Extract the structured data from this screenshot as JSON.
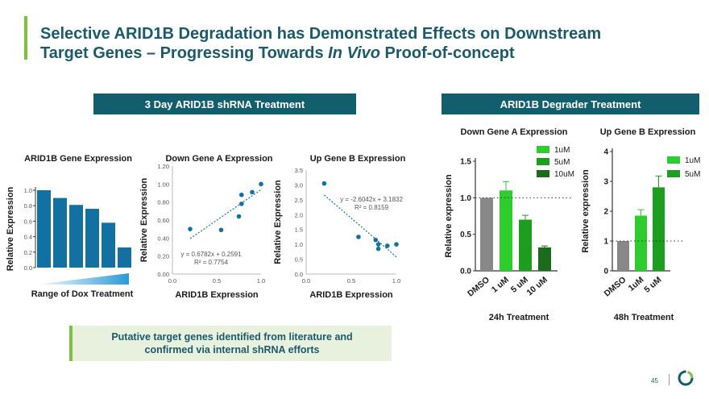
{
  "slide": {
    "title_line1": "Selective ARID1B Degradation has Demonstrated Effects on Downstream",
    "title_line2_pre": "Target Genes – Progressing Towards ",
    "title_line2_em": "In Vivo",
    "title_line2_post": " Proof-of-concept",
    "header_left": "3 Day ARID1B shRNA Treatment",
    "header_right": "ARID1B Degrader Treatment",
    "callout_line1": "Putative target genes identified from literature and",
    "callout_line2": "confirmed via internal shRNA efforts",
    "page_number": "45"
  },
  "colors": {
    "teal": "#135e6c",
    "bar_blue": "#1271a0",
    "accent_green": "#7cc242",
    "grey": "#888888",
    "green_1uM": "#2ecc2e",
    "green_5uM": "#1e9e1e",
    "green_10uM": "#1a6b1a"
  },
  "chart_data": [
    {
      "type": "bar",
      "title": "ARID1B Gene Expression",
      "ylabel": "Relative  Expression",
      "ylim": [
        0,
        1.0
      ],
      "yticks": [
        "0.0",
        "0.2",
        "0.4",
        "0.6",
        "0.8",
        "1.0"
      ],
      "values": [
        1.0,
        0.9,
        0.81,
        0.76,
        0.58,
        0.26
      ],
      "xlabel": "Range of Dox Treatment"
    },
    {
      "type": "scatter",
      "title": "Down Gene A Expression",
      "xlabel": "ARID1B Expression",
      "ylabel": "Relative  Expression",
      "xlim": [
        0,
        1.0
      ],
      "ylim": [
        0,
        1.2
      ],
      "xticks": [
        "0.0",
        "0.5",
        "1.0"
      ],
      "yticks": [
        "0.00",
        "0.20",
        "0.40",
        "0.60",
        "0.80",
        "1.00",
        "1.20"
      ],
      "points": [
        [
          0.2,
          0.5
        ],
        [
          0.55,
          0.49
        ],
        [
          0.75,
          0.64
        ],
        [
          0.78,
          0.78
        ],
        [
          0.78,
          0.88
        ],
        [
          0.9,
          0.91
        ],
        [
          1.0,
          1.0
        ]
      ],
      "equation": "y = 0.6782x + 0.2591",
      "r2": "R² = 0.7754"
    },
    {
      "type": "scatter",
      "title": "Up Gene B Expression",
      "xlabel": "ARID1B Expression",
      "ylabel": "Relative  Expression",
      "xlim": [
        0,
        1.0
      ],
      "ylim": [
        0,
        3.5
      ],
      "xticks": [
        "0.0",
        "0.5",
        "1.0"
      ],
      "yticks": [
        "0.0",
        "0.5",
        "1.0",
        "1.5",
        "2.0",
        "2.5",
        "3.0",
        "3.5"
      ],
      "points": [
        [
          0.2,
          3.05
        ],
        [
          0.58,
          1.25
        ],
        [
          0.77,
          1.15
        ],
        [
          0.8,
          1.0
        ],
        [
          0.8,
          0.85
        ],
        [
          0.9,
          0.95
        ],
        [
          1.0,
          1.0
        ]
      ],
      "equation": "y = -2.6042x + 3.1832",
      "r2": "R² = 0.8159"
    },
    {
      "type": "bar",
      "title": "Down Gene A Expression",
      "ylabel": "Relative expression",
      "ylim": [
        0,
        1.5
      ],
      "yticks": [
        "0.0",
        "0.5",
        "1.0",
        "1.5"
      ],
      "categories": [
        "DMSO",
        "1 uM",
        "5 uM",
        "10 uM"
      ],
      "values": [
        1.0,
        1.1,
        0.7,
        0.32
      ],
      "errors": [
        0,
        0.12,
        0.06,
        0.02
      ],
      "reference_line": 1.0,
      "legend": [
        "1uM",
        "5uM",
        "10uM"
      ],
      "xlabel": "24h Treatment"
    },
    {
      "type": "bar",
      "title": "Up Gene B Expression",
      "ylabel": "Relative expression",
      "ylim": [
        0,
        4
      ],
      "yticks": [
        "0",
        "1",
        "2",
        "3",
        "4"
      ],
      "categories": [
        "DMSO",
        "1uM",
        "5 uM"
      ],
      "values": [
        1.0,
        1.85,
        2.8
      ],
      "errors": [
        0,
        0.2,
        0.38
      ],
      "reference_line": 1.0,
      "legend": [
        "1uM",
        "5uM"
      ],
      "xlabel": "48h Treatment"
    }
  ]
}
